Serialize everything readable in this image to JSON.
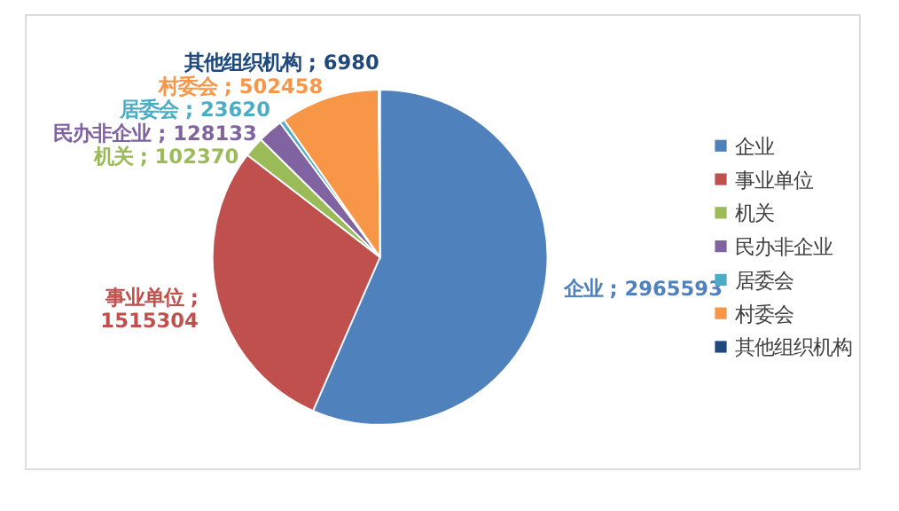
{
  "chart_data": {
    "type": "pie",
    "categories": [
      "企业",
      "事业单位",
      "机关",
      "民办非企业",
      "居委会",
      "村委会",
      "其他组织机构"
    ],
    "values": [
      2965593,
      1515304,
      102370,
      128133,
      23620,
      502458,
      6980
    ],
    "value_labels": [
      "企业 ; 2965593",
      "事业单位 ; 1515304",
      "机关 ; 102370",
      "民办非企业 ; 128133",
      "居委会 ; 23620",
      "村委会 ; 502458",
      "其他组织机构 ; 6980"
    ],
    "colors": [
      "#4f81bd",
      "#c0504d",
      "#9bbb59",
      "#8064a2",
      "#4bacc6",
      "#f79646",
      "#1f497d"
    ],
    "legend": "right"
  }
}
